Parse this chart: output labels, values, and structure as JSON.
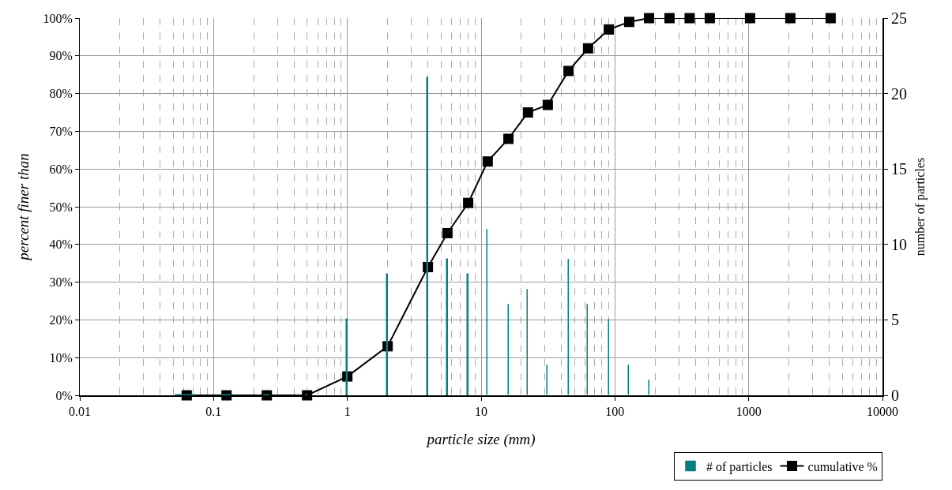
{
  "chart_data": {
    "type": "line",
    "xlabel": "particle size (mm)",
    "ylabel": "percent finer than",
    "y2label": "number of particles",
    "x": [
      0.063,
      0.125,
      0.25,
      0.5,
      1,
      2,
      4,
      5.6,
      8,
      11.2,
      16,
      22.4,
      31.5,
      45,
      63,
      90,
      128,
      180,
      256,
      362,
      512,
      1024,
      2048,
      4096
    ],
    "series": [
      {
        "name": "cumulative %",
        "color": "#000000",
        "marker": "square",
        "line_style": "solid",
        "values": [
          0,
          0,
          0,
          0,
          5,
          13,
          34,
          43,
          51,
          62,
          68,
          75,
          77,
          86,
          92,
          97,
          99,
          100,
          100,
          100,
          100,
          100,
          100,
          100
        ]
      },
      {
        "name": "# of particles",
        "type": "bar",
        "axis": "y2",
        "color": "#008080",
        "values": [
          0,
          0,
          0,
          0,
          5,
          8,
          21,
          9,
          8,
          11,
          6,
          7,
          2,
          9,
          6,
          5,
          2,
          1,
          0,
          0,
          0,
          0,
          0,
          0
        ]
      }
    ],
    "log": "x",
    "xlim": [
      0.01,
      10000
    ],
    "xticks": [
      0.01,
      0.1,
      1,
      10,
      100,
      1000,
      10000
    ],
    "ylim": [
      0,
      100
    ],
    "yticks": [
      {
        "value": 0,
        "label": "0%"
      },
      {
        "value": 10,
        "label": "10%"
      },
      {
        "value": 20,
        "label": "20%"
      },
      {
        "value": 30,
        "label": "30%"
      },
      {
        "value": 40,
        "label": "40%"
      },
      {
        "value": 50,
        "label": "50%"
      },
      {
        "value": 60,
        "label": "60%"
      },
      {
        "value": 70,
        "label": "70%"
      },
      {
        "value": 80,
        "label": "80%"
      },
      {
        "value": 90,
        "label": "90%"
      },
      {
        "value": 100,
        "label": "100%"
      }
    ],
    "y2lim": [
      0,
      25
    ],
    "y2ticks": [
      0,
      5,
      10,
      15,
      20,
      25
    ],
    "grid": true,
    "legend": "bottom right"
  }
}
